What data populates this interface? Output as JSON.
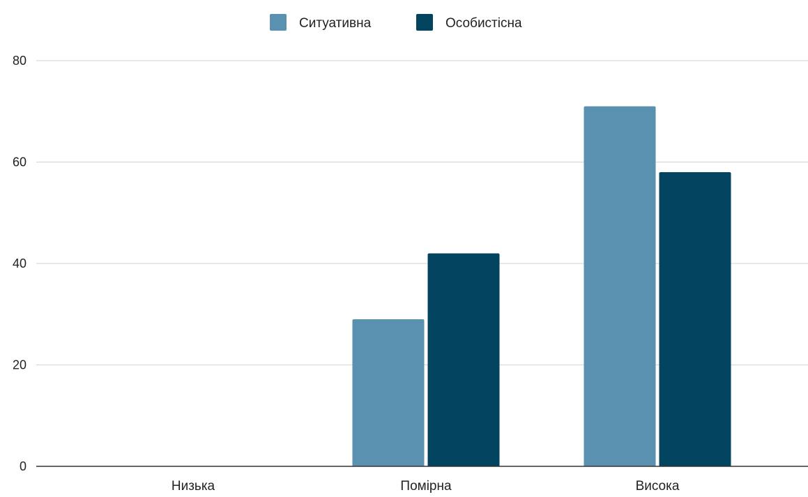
{
  "chart_data": {
    "type": "bar",
    "title": "",
    "xlabel": "",
    "ylabel": "",
    "categories": [
      "Низька",
      "Помірна",
      "Висока"
    ],
    "series": [
      {
        "name": "Ситуативна",
        "color": "#5a91b0",
        "values": [
          0,
          29,
          71
        ]
      },
      {
        "name": "Особистісна",
        "color": "#02445f",
        "values": [
          0,
          42,
          58
        ]
      }
    ],
    "ylim": [
      0,
      80
    ],
    "yticks": [
      "0",
      "20",
      "40",
      "60",
      "80"
    ],
    "grid": true,
    "legend": "top-center",
    "colors": {
      "grid": "#d9d9d9",
      "axis": "#333333",
      "text": "#222222"
    }
  }
}
